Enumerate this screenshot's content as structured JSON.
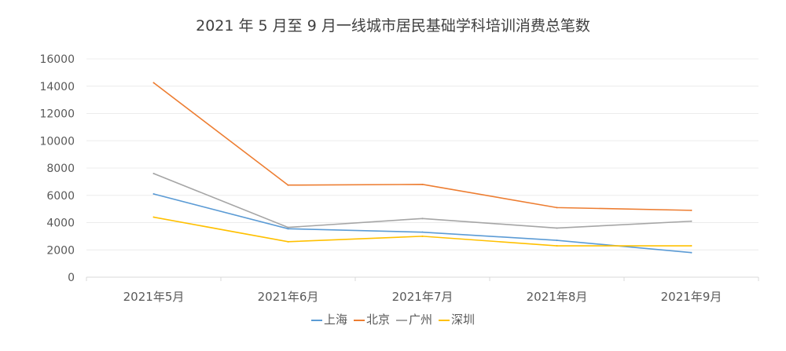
{
  "chart_data": {
    "type": "line",
    "title": "2021 年 5 月至 9 月一线城市居民基础学科培训消费总笔数",
    "xlabel": "",
    "ylabel": "",
    "categories": [
      "2021年5月",
      "2021年6月",
      "2021年7月",
      "2021年8月",
      "2021年9月"
    ],
    "ylim": [
      0,
      16000
    ],
    "yticks": [
      "0",
      "2000",
      "4000",
      "6000",
      "8000",
      "10000",
      "12000",
      "14000",
      "16000"
    ],
    "grid": true,
    "legend_position": "bottom",
    "series": [
      {
        "name": "上海",
        "color": "#5b9bd5",
        "values": [
          6100,
          3550,
          3300,
          2700,
          1800
        ]
      },
      {
        "name": "北京",
        "color": "#ed7d31",
        "values": [
          14250,
          6750,
          6800,
          5100,
          4900
        ]
      },
      {
        "name": "广州",
        "color": "#a5a5a5",
        "values": [
          7600,
          3650,
          4300,
          3600,
          4100
        ]
      },
      {
        "name": "深圳",
        "color": "#ffc000",
        "values": [
          4400,
          2600,
          3000,
          2300,
          2300
        ]
      }
    ]
  }
}
